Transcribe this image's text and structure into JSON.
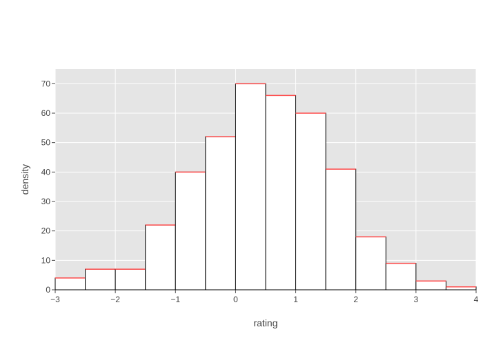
{
  "chart_data": {
    "type": "bar",
    "subtype": "histogram",
    "xlabel": "rating",
    "ylabel": "density",
    "xlim": [
      -3,
      4
    ],
    "ylim": [
      0,
      75
    ],
    "grid": true,
    "x_ticks": [
      {
        "value": -3,
        "label": "−3"
      },
      {
        "value": -2,
        "label": "−2"
      },
      {
        "value": -1,
        "label": "−1"
      },
      {
        "value": 0,
        "label": "0"
      },
      {
        "value": 1,
        "label": "1"
      },
      {
        "value": 2,
        "label": "2"
      },
      {
        "value": 3,
        "label": "3"
      },
      {
        "value": 4,
        "label": "4"
      }
    ],
    "y_ticks": [
      {
        "value": 0,
        "label": "0"
      },
      {
        "value": 10,
        "label": "10"
      },
      {
        "value": 20,
        "label": "20"
      },
      {
        "value": 30,
        "label": "30"
      },
      {
        "value": 40,
        "label": "40"
      },
      {
        "value": 50,
        "label": "50"
      },
      {
        "value": 60,
        "label": "60"
      },
      {
        "value": 70,
        "label": "70"
      }
    ],
    "bin_width": 0.5,
    "bins": [
      {
        "start": -3.0,
        "end": -2.5,
        "value": 4
      },
      {
        "start": -2.5,
        "end": -2.0,
        "value": 7
      },
      {
        "start": -2.0,
        "end": -1.5,
        "value": 7
      },
      {
        "start": -1.5,
        "end": -1.0,
        "value": 22
      },
      {
        "start": -1.0,
        "end": -0.5,
        "value": 40
      },
      {
        "start": -0.5,
        "end": 0.0,
        "value": 52
      },
      {
        "start": 0.0,
        "end": 0.5,
        "value": 70
      },
      {
        "start": 0.5,
        "end": 1.0,
        "value": 66
      },
      {
        "start": 1.0,
        "end": 1.5,
        "value": 60
      },
      {
        "start": 1.5,
        "end": 2.0,
        "value": 41
      },
      {
        "start": 2.0,
        "end": 2.5,
        "value": 18
      },
      {
        "start": 2.5,
        "end": 3.0,
        "value": 9
      },
      {
        "start": 3.0,
        "end": 3.5,
        "value": 3
      },
      {
        "start": 3.5,
        "end": 4.0,
        "value": 1
      }
    ],
    "colors": {
      "plot_background": "#e5e5e5",
      "grid": "#ffffff",
      "bar_fill": "#ffffff",
      "bar_outline": "#000000",
      "bar_top": "#ff4b4b"
    }
  }
}
